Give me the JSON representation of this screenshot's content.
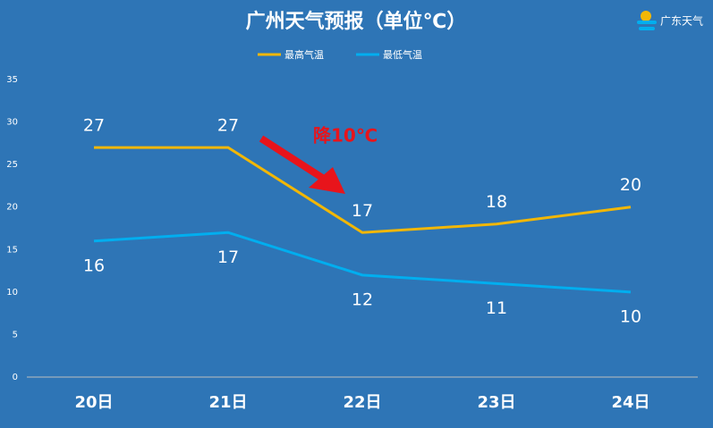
{
  "chart_data": {
    "type": "line",
    "title": "广州天气预报（单位℃）",
    "source": "广东天气",
    "annotation": "降10℃",
    "categories": [
      "20日",
      "21日",
      "22日",
      "23日",
      "24日"
    ],
    "series": [
      {
        "name": "最高气温",
        "color": "#f2b705",
        "values": [
          27,
          27,
          17,
          18,
          20
        ]
      },
      {
        "name": "最低气温",
        "color": "#00aeef",
        "values": [
          16,
          17,
          12,
          11,
          10
        ]
      }
    ],
    "ylim": [
      0,
      35
    ],
    "yticks": [
      0,
      5,
      10,
      15,
      20,
      25,
      30,
      35
    ],
    "grid": false,
    "legend": "top"
  }
}
